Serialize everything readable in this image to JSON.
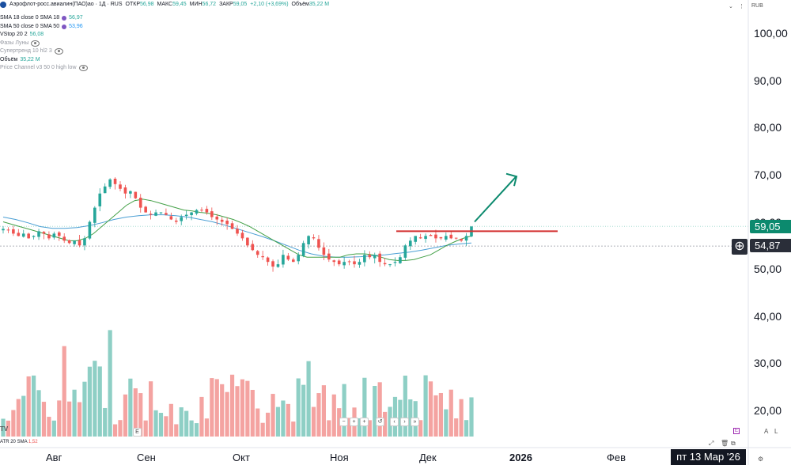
{
  "header": {
    "title": "Аэрофлот-росс.авиалин(ПАО)ао · 1Д · RUS",
    "open_label": "ОТКР",
    "open_value": "56,98",
    "high_label": "МАКС",
    "high_value": "59,45",
    "low_label": "МИН",
    "low_value": "56,72",
    "close_label": "ЗАКР",
    "close_value": "59,05",
    "change": "+2,10 (+3,69%)",
    "volume_label": "Объём",
    "volume_value": "35,22 M",
    "currency": "RUB"
  },
  "legend": [
    {
      "name": "SMA 18 close 0 SMA 18",
      "value": "56,97",
      "color": "#7e57c2"
    },
    {
      "name": "SMA 50 close 0 SMA 50",
      "value": "53,96",
      "color": "#7e57c2"
    },
    {
      "name": "VStop 20 2",
      "value": "56,08",
      "color": "#2196f3"
    },
    {
      "name": "Фазы Луны",
      "value": "",
      "color": ""
    },
    {
      "name": "Супертренд 10 hl2 3",
      "value": "",
      "color": ""
    },
    {
      "name": "Объём",
      "value": "35,22 M",
      "color": ""
    },
    {
      "name": "Price Channel v3 50 0 high low",
      "value": "",
      "color": ""
    }
  ],
  "price_tags": {
    "last": "59,05",
    "cursor": "54,87"
  },
  "atr": {
    "label": "ATR 20 SMA",
    "value": "1,52"
  },
  "date_badge": "пт 13 Мар '26",
  "colors": {
    "up": "#26a69a",
    "down": "#ef5350",
    "sma_fast": "#43a047",
    "sma_slow": "#4a9fd4",
    "resistance": "#d32f2f",
    "arrow": "#0c8a6e",
    "vol_up": "#8ecfc5",
    "vol_down": "#f4a3a1"
  },
  "chart_data": {
    "type": "candlestick",
    "y_ticks": [
      "100,00",
      "90,00",
      "80,00",
      "70,00",
      "60,00",
      "50,00",
      "40,00",
      "30,00",
      "20,00"
    ],
    "x_ticks": [
      "Авг",
      "Сен",
      "Окт",
      "Ноя",
      "Дек",
      "2026",
      "Фев"
    ],
    "ylim": [
      16,
      105
    ],
    "close_path": [
      58.5,
      58.2,
      57.5,
      57.0,
      57.5,
      56.5,
      57.0,
      58.0,
      57.5,
      56.5,
      57.5,
      57.0,
      56.0,
      55.5,
      56.0,
      55.0,
      56.5,
      60.0,
      63.0,
      66.0,
      67.5,
      69.0,
      68.0,
      67.0,
      66.0,
      66.5,
      65.0,
      63.0,
      62.0,
      61.5,
      62.0,
      62.0,
      61.5,
      60.5,
      60.0,
      61.0,
      61.5,
      62.0,
      62.5,
      62.5,
      62.0,
      61.0,
      60.5,
      60.0,
      59.5,
      58.5,
      57.5,
      56.5,
      55.0,
      54.0,
      53.0,
      52.5,
      51.5,
      50.5,
      51.0,
      53.0,
      52.0,
      51.5,
      53.0,
      55.5,
      57.0,
      56.5,
      54.5,
      53.0,
      52.0,
      51.5,
      51.0,
      51.5,
      51.5,
      51.0,
      51.5,
      53.0,
      52.5,
      53.0,
      51.5,
      51.0,
      51.0,
      51.5,
      52.5,
      55.0,
      56.0,
      57.0,
      56.5,
      57.0,
      57.0,
      56.5,
      56.5,
      57.0,
      56.5,
      56.5,
      56.0,
      57.0,
      59.0
    ],
    "sma_fast_path": [
      60.0,
      59.5,
      59.0,
      58.5,
      58.0,
      57.5,
      57.0,
      56.5,
      56.0,
      56.0,
      56.5,
      57.5,
      59.0,
      60.5,
      62.0,
      63.5,
      64.5,
      64.8,
      64.5,
      64.0,
      63.5,
      63.0,
      62.5,
      62.3,
      62.0,
      61.8,
      61.5,
      61.0,
      60.5,
      59.8,
      59.0,
      58.0,
      57.0,
      56.0,
      55.0,
      54.0,
      53.0,
      52.5,
      52.5,
      52.5,
      52.5,
      52.5,
      53.0,
      53.2,
      53.2,
      53.0,
      52.5,
      52.0,
      51.8,
      51.8,
      52.0,
      52.5,
      53.0,
      54.0,
      55.0,
      55.8,
      56.5,
      57.0
    ],
    "sma_slow_path": [
      61.0,
      60.5,
      59.8,
      59.0,
      58.6,
      58.6,
      58.8,
      59.2,
      59.8,
      60.5,
      61.0,
      61.3,
      61.5,
      61.5,
      61.3,
      61.0,
      60.5,
      60.0,
      59.3,
      58.5,
      57.7,
      56.9,
      56.0,
      55.0,
      54.0,
      53.2,
      52.7,
      52.5,
      52.5,
      52.6,
      52.8,
      53.0,
      53.3,
      53.6,
      54.0,
      54.5,
      55.0,
      55.3,
      55.5
    ],
    "resistance_level": 58.0,
    "last_price": 59.05,
    "cursor_price": 54.87,
    "atr": 1.52
  }
}
